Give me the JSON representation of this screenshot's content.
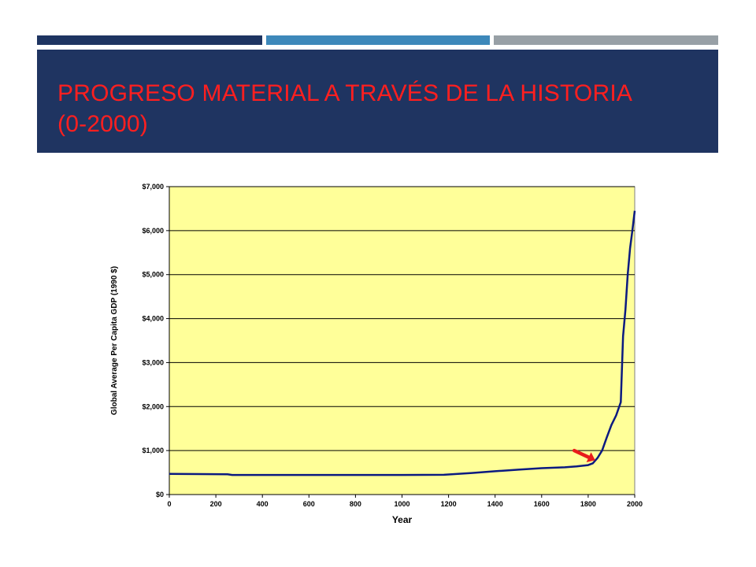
{
  "slide": {
    "title_line1": "PROGRESO MATERIAL A TRAVÉS DE LA HISTORIA",
    "title_line2": "(0-2000)"
  },
  "colors": {
    "header_band": "#1f3461",
    "title_text": "#ff1f1f",
    "bar_dark": "#1e3461",
    "bar_mid": "#3d88ba",
    "bar_grey": "#98a0a6",
    "plot_background": "#ffff99",
    "series_line": "#0b1a80",
    "arrow": "#e81c1c"
  },
  "chart_data": {
    "type": "line",
    "title": "",
    "xlabel": "Year",
    "ylabel": "Global Average Per Capita GDP (1990 $)",
    "xlim": [
      0,
      2000
    ],
    "ylim": [
      0,
      7000
    ],
    "xticks": [
      0,
      200,
      400,
      600,
      800,
      1000,
      1200,
      1400,
      1600,
      1800,
      2000
    ],
    "yticks": [
      0,
      1000,
      2000,
      3000,
      4000,
      5000,
      6000,
      7000
    ],
    "ytick_labels": [
      "$0",
      "$1,000",
      "$2,000",
      "$3,000",
      "$4,000",
      "$5,000",
      "$6,000",
      "$7,000"
    ],
    "grid": "horizontal",
    "series": [
      {
        "x": [
          0,
          250,
          270,
          500,
          1000,
          1180,
          1300,
          1400,
          1500,
          1600,
          1700,
          1750,
          1800,
          1820,
          1840,
          1860,
          1880,
          1900,
          1920,
          1940,
          1950,
          1960,
          1970,
          1980,
          1990,
          2000
        ],
        "values": [
          470,
          460,
          445,
          445,
          445,
          450,
          490,
          530,
          565,
          600,
          620,
          640,
          670,
          710,
          830,
          1000,
          1300,
          1580,
          1800,
          2100,
          3600,
          4200,
          5000,
          5600,
          6000,
          6450
        ]
      }
    ],
    "annotations": [
      {
        "type": "arrow",
        "from": [
          1740,
          1000
        ],
        "to": [
          1830,
          780
        ]
      }
    ]
  }
}
